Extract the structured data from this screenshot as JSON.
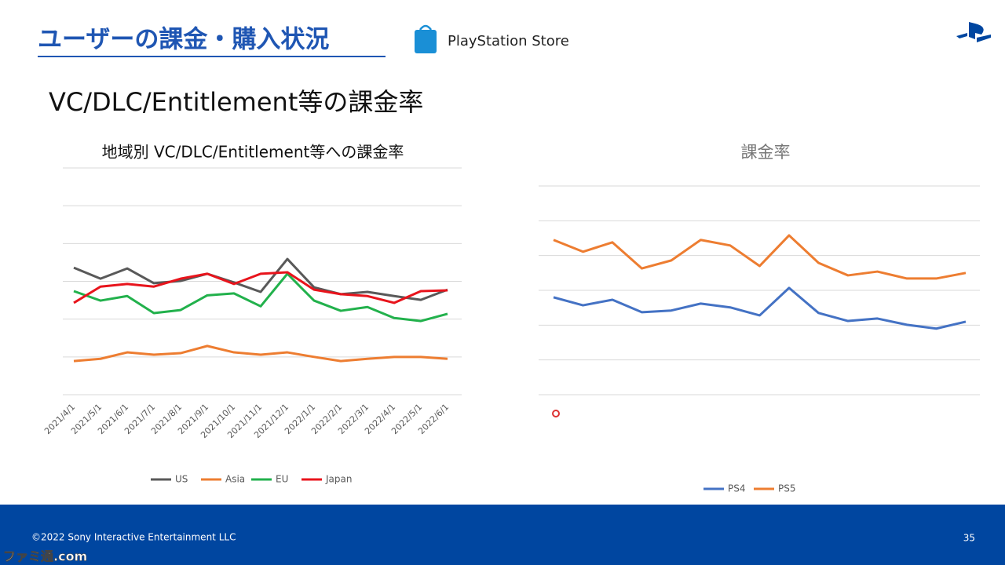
{
  "header": {
    "title": "ユーザーの課金・購入状況",
    "store": "PlayStation Store",
    "heading": "VC/DLC/Entitlement等の課金率"
  },
  "footer": {
    "copyright": "©2022 Sony Interactive Entertainment LLC",
    "page": "35",
    "watermark": "ファミ通.com"
  },
  "chart_data": [
    {
      "type": "line",
      "title": "地域別 VC/DLC/Entitlement等への課金率",
      "categories": [
        "2021/4/1",
        "2021/5/1",
        "2021/6/1",
        "2021/7/1",
        "2021/8/1",
        "2021/9/1",
        "2021/10/1",
        "2021/11/1",
        "2021/12/1",
        "2022/1/1",
        "2022/2/1",
        "2022/3/1",
        "2022/4/1",
        "2022/5/1",
        "2022/6/1"
      ],
      "series": [
        {
          "name": "US",
          "color": "#595959",
          "values": [
            3.36,
            3.07,
            3.34,
            2.95,
            3.01,
            3.2,
            2.97,
            2.72,
            3.59,
            2.84,
            2.66,
            2.72,
            2.61,
            2.51,
            2.78
          ]
        },
        {
          "name": "Asia",
          "color": "#ed7d31",
          "values": [
            0.89,
            0.95,
            1.12,
            1.06,
            1.1,
            1.29,
            1.12,
            1.06,
            1.12,
            1.0,
            0.89,
            0.95,
            1.0,
            1.0,
            0.95
          ]
        },
        {
          "name": "EU",
          "color": "#22b14c",
          "values": [
            2.74,
            2.49,
            2.61,
            2.16,
            2.24,
            2.63,
            2.68,
            2.34,
            3.2,
            2.49,
            2.22,
            2.32,
            2.03,
            1.95,
            2.14
          ]
        },
        {
          "name": "Japan",
          "color": "#e8141c",
          "values": [
            2.43,
            2.86,
            2.93,
            2.86,
            3.07,
            3.2,
            2.93,
            3.2,
            3.24,
            2.78,
            2.66,
            2.61,
            2.43,
            2.74,
            2.76
          ]
        }
      ],
      "ylim": [
        0,
        6
      ],
      "grid": true,
      "legend": "bottom"
    },
    {
      "type": "line",
      "title": "課金率",
      "categories": [
        null,
        null,
        null,
        null,
        null,
        null,
        null,
        null,
        null,
        null,
        null,
        null,
        null,
        null,
        null
      ],
      "series": [
        {
          "name": "PS4",
          "color": "#4472c4",
          "values": [
            2.8,
            2.57,
            2.73,
            2.37,
            2.42,
            2.62,
            2.51,
            2.28,
            3.07,
            2.35,
            2.12,
            2.19,
            2.01,
            1.9,
            2.1
          ]
        },
        {
          "name": "PS5",
          "color": "#ed7d31",
          "values": [
            4.45,
            4.11,
            4.38,
            3.63,
            3.86,
            4.45,
            4.29,
            3.7,
            4.58,
            3.79,
            3.43,
            3.54,
            3.34,
            3.34,
            3.5
          ]
        }
      ],
      "ylim": [
        0,
        6
      ],
      "grid": true,
      "legend": "bottom"
    }
  ]
}
